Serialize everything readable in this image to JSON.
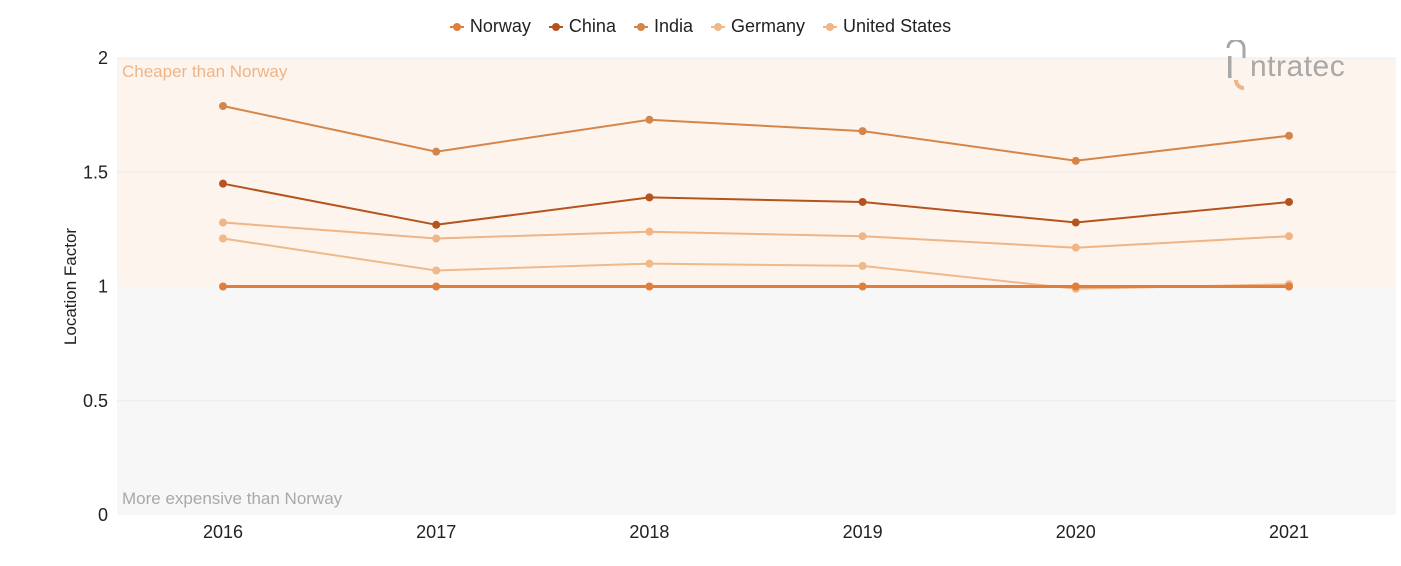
{
  "legend_items": [
    "Norway",
    "China",
    "India",
    "Germany",
    "United States"
  ],
  "zones": {
    "upper_label": "Cheaper than Norway",
    "lower_label": "More expensive than Norway",
    "upper_color": "#fdf4ee",
    "lower_color": "#f7f7f7"
  },
  "logo": {
    "text": "ntratec",
    "color": "#a8a8a8"
  },
  "chart_data": {
    "type": "line",
    "title": "",
    "xlabel": "",
    "ylabel": "Location Factor",
    "categories": [
      "2016",
      "2017",
      "2018",
      "2019",
      "2020",
      "2021"
    ],
    "ylim": [
      0,
      2
    ],
    "yticks": [
      "0",
      "0.5",
      "1",
      "1.5",
      "2"
    ],
    "grid": true,
    "legend_position": "top-center",
    "series": [
      {
        "name": "Norway",
        "color": "#e07f3c",
        "values": [
          1.0,
          1.0,
          1.0,
          1.0,
          1.0,
          1.0
        ]
      },
      {
        "name": "China",
        "color": "#b4531e",
        "values": [
          1.45,
          1.27,
          1.39,
          1.37,
          1.28,
          1.37
        ]
      },
      {
        "name": "India",
        "color": "#d4864a",
        "values": [
          1.79,
          1.59,
          1.73,
          1.68,
          1.55,
          1.66
        ]
      },
      {
        "name": "Germany",
        "color": "#f0b98a",
        "values": [
          1.21,
          1.07,
          1.1,
          1.09,
          0.99,
          1.01
        ]
      },
      {
        "name": "United States",
        "color": "#efb586",
        "values": [
          1.28,
          1.21,
          1.24,
          1.22,
          1.17,
          1.22
        ]
      }
    ]
  }
}
